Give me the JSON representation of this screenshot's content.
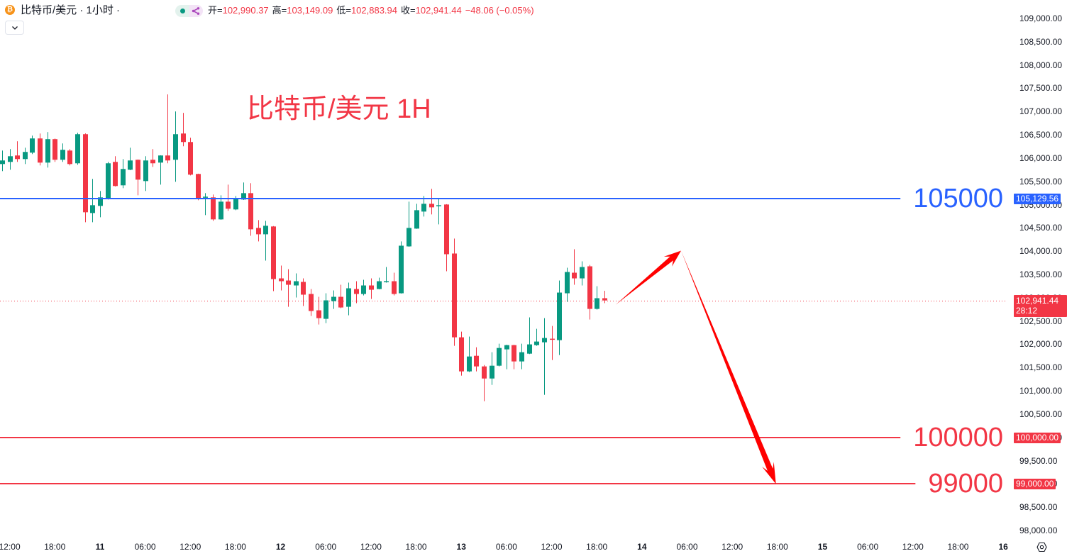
{
  "header": {
    "title": "比特币/美元 · 1小时 ·",
    "ohlc": {
      "open_label": "开=",
      "open": "102,990.37",
      "high_label": "高=",
      "high": "103,149.09",
      "low_label": "低=",
      "low": "102,883.94",
      "close_label": "收=",
      "close": "102,941.44",
      "change": "−48.06 (−0.05%)"
    }
  },
  "icons": {
    "symbol": "bitcoin-icon",
    "status": "market-status-dot-icon",
    "share": "share-icon",
    "collapse": "chevron-down-icon",
    "settings": "settings-hexagon-icon"
  },
  "colors": {
    "up": "#089981",
    "down": "#f23645",
    "level_blue": "#2962ff",
    "arrow": "#ff0000"
  },
  "chart_data": {
    "type": "candlestick",
    "title": "比特币/美元 · 1小时",
    "interval": "1H",
    "grid": false,
    "ylim": [
      97900,
      109400
    ],
    "x_ticks": [
      "12:00",
      "18:00",
      "11",
      "06:00",
      "12:00",
      "18:00",
      "12",
      "06:00",
      "12:00",
      "18:00",
      "13",
      "06:00",
      "12:00",
      "18:00",
      "14",
      "06:00",
      "12:00",
      "18:00",
      "15",
      "06:00",
      "12:00",
      "18:00",
      "16"
    ],
    "y_ticks": [
      {
        "value": 109000,
        "label": "109,000.00"
      },
      {
        "value": 108500,
        "label": "108,500.00"
      },
      {
        "value": 108000,
        "label": "108,000.00"
      },
      {
        "value": 107500,
        "label": "107,500.00"
      },
      {
        "value": 107000,
        "label": "107,000.00"
      },
      {
        "value": 106500,
        "label": "106,500.00"
      },
      {
        "value": 106000,
        "label": "106,000.00"
      },
      {
        "value": 105500,
        "label": "105,500.00"
      },
      {
        "value": 105000,
        "label": "105,000.00"
      },
      {
        "value": 104500,
        "label": "104,500.00"
      },
      {
        "value": 104000,
        "label": "104,000.00"
      },
      {
        "value": 103500,
        "label": "103,500.00"
      },
      {
        "value": 103000,
        "label": "103,000.00"
      },
      {
        "value": 102500,
        "label": "102,500.00"
      },
      {
        "value": 102000,
        "label": "102,000.00"
      },
      {
        "value": 101500,
        "label": "101,500.00"
      },
      {
        "value": 101000,
        "label": "101,000.00"
      },
      {
        "value": 100500,
        "label": "100,500.00"
      },
      {
        "value": 100000,
        "label": "100,000.00"
      },
      {
        "value": 99500,
        "label": "99,500.00"
      },
      {
        "value": 99000,
        "label": "99,000.00"
      },
      {
        "value": 98500,
        "label": "98,500.00"
      },
      {
        "value": 98000,
        "label": "98,000.00"
      }
    ],
    "series": [
      {
        "name": "比特币/美元",
        "ohlc_fields": [
          "open",
          "high",
          "low",
          "close"
        ],
        "ohlc": [
          [
            105872,
            106162,
            105720,
            105949
          ],
          [
            105918,
            106193,
            105750,
            106040
          ],
          [
            106056,
            106361,
            105918,
            105979
          ],
          [
            105979,
            106223,
            105872,
            106132
          ],
          [
            106117,
            106483,
            106086,
            106422
          ],
          [
            106422,
            106528,
            105842,
            105903
          ],
          [
            105903,
            106559,
            105796,
            106407
          ],
          [
            106407,
            106420,
            105918,
            105964
          ],
          [
            105964,
            106315,
            105918,
            106178
          ],
          [
            106162,
            106193,
            105842,
            105872
          ],
          [
            105888,
            106544,
            105857,
            106513
          ],
          [
            106513,
            106530,
            104622,
            104836
          ],
          [
            104820,
            105552,
            104622,
            104988
          ],
          [
            104973,
            105293,
            104729,
            105156
          ],
          [
            105140,
            105918,
            105110,
            105888
          ],
          [
            105918,
            106040,
            105390,
            105400
          ],
          [
            105415,
            105979,
            105354,
            105766
          ],
          [
            105750,
            106223,
            105740,
            105949
          ],
          [
            105964,
            105970,
            105201,
            105537
          ],
          [
            105506,
            106040,
            105293,
            105949
          ],
          [
            105964,
            106193,
            105811,
            105888
          ],
          [
            105903,
            106060,
            105430,
            106056
          ],
          [
            106056,
            107368,
            105888,
            105949
          ],
          [
            105964,
            107002,
            105491,
            106513
          ],
          [
            106528,
            106971,
            106254,
            106345
          ],
          [
            106345,
            106437,
            105628,
            105644
          ],
          [
            105659,
            105665,
            105095,
            105125
          ],
          [
            105156,
            105247,
            104775,
            105171
          ],
          [
            105156,
            105217,
            104652,
            104683
          ],
          [
            104683,
            105201,
            104675,
            105064
          ],
          [
            105064,
            105430,
            104866,
            104912
          ],
          [
            104897,
            105186,
            104881,
            105125
          ],
          [
            105110,
            105476,
            105100,
            105247
          ],
          [
            105247,
            105461,
            104332,
            104470
          ],
          [
            104500,
            104668,
            104210,
            104363
          ],
          [
            104363,
            104652,
            103798,
            104546
          ],
          [
            104531,
            104540,
            103142,
            103401
          ],
          [
            103416,
            103691,
            103157,
            103355
          ],
          [
            103370,
            103614,
            102806,
            103279
          ],
          [
            103264,
            103523,
            103005,
            103355
          ],
          [
            103340,
            103416,
            102822,
            103066
          ],
          [
            103081,
            103187,
            102608,
            102715
          ],
          [
            102730,
            103020,
            102425,
            102562
          ],
          [
            102547,
            103096,
            102455,
            102944
          ],
          [
            102928,
            103157,
            102760,
            103020
          ],
          [
            103020,
            103279,
            102776,
            102791
          ],
          [
            102806,
            103325,
            102623,
            103203
          ],
          [
            103187,
            103355,
            102883,
            103081
          ],
          [
            103081,
            103386,
            103050,
            103264
          ],
          [
            103264,
            103416,
            102974,
            103172
          ],
          [
            103187,
            103431,
            103180,
            103355
          ],
          [
            103340,
            103660,
            103325,
            103355
          ],
          [
            103355,
            103538,
            103050,
            103081
          ],
          [
            103096,
            104210,
            103090,
            104118
          ],
          [
            104103,
            105064,
            104095,
            104500
          ],
          [
            104485,
            105018,
            104480,
            104881
          ],
          [
            104851,
            105186,
            104744,
            105018
          ],
          [
            105018,
            105339,
            104790,
            104942
          ],
          [
            104973,
            105125,
            104576,
            104988
          ],
          [
            105003,
            105010,
            103569,
            103935
          ],
          [
            103950,
            104271,
            101967,
            102150
          ],
          [
            102150,
            102272,
            101327,
            101418
          ],
          [
            101418,
            102166,
            101403,
            101738
          ],
          [
            101753,
            101936,
            101418,
            101525
          ],
          [
            101525,
            101555,
            100777,
            101265
          ],
          [
            101265,
            101830,
            101128,
            101540
          ],
          [
            101540,
            102013,
            101525,
            101921
          ],
          [
            101891,
            101990,
            101464,
            101982
          ],
          [
            101982,
            101990,
            101464,
            101632
          ],
          [
            101632,
            102013,
            101464,
            101830
          ],
          [
            101799,
            102578,
            101790,
            101998
          ],
          [
            101982,
            102333,
            101967,
            102059
          ],
          [
            102043,
            102562,
            100915,
            102135
          ],
          [
            102120,
            102394,
            101662,
            102104
          ],
          [
            102089,
            103370,
            101769,
            103111
          ],
          [
            103096,
            103645,
            102913,
            103553
          ],
          [
            103538,
            104042,
            103279,
            103416
          ],
          [
            103416,
            103782,
            103264,
            103660
          ],
          [
            103675,
            103706,
            102532,
            102760
          ],
          [
            102760,
            103248,
            102745,
            102990
          ],
          [
            102990.37,
            103149.09,
            102883.94,
            102941.44
          ]
        ]
      }
    ],
    "current_price": {
      "price": 102941.44,
      "label": "102,941.44",
      "countdown": "28:12"
    },
    "annotations": {
      "title_text": "比特币/美元 1H",
      "levels": [
        {
          "name": "resistance-105000",
          "text": "105000",
          "price": 105129.56,
          "price_label": "105,129.56",
          "color": "#2962ff"
        },
        {
          "name": "support-100000",
          "text": "100000",
          "price": 100000,
          "price_label": "100,000.00",
          "color": "#f23645"
        },
        {
          "name": "target-99000",
          "text": "99000",
          "price": 99000,
          "price_label": "99,000.00",
          "color": "#f23645"
        }
      ],
      "arrows": [
        {
          "name": "arrow-up",
          "from": {
            "bar": 81.5,
            "price": 102850
          },
          "to": {
            "bar": 90.2,
            "price": 104010
          },
          "head_len": 24,
          "head_half": 9,
          "shaft_half": 3.5
        },
        {
          "name": "arrow-down",
          "from": {
            "bar": 90.2,
            "price": 104010
          },
          "to": {
            "bar": 102.8,
            "price": 99000
          },
          "head_len": 30,
          "head_half": 9,
          "shaft_half": 4
        }
      ]
    }
  }
}
